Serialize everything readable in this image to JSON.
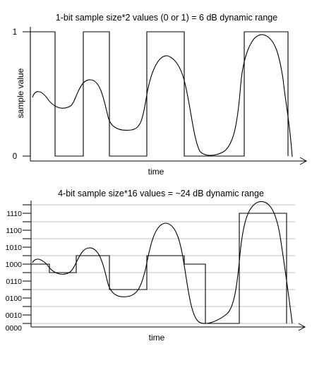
{
  "top_panel": {
    "title": "1-bit sample size*2 values (0 or 1) = 6 dB dynamic range",
    "ylabel": "sample value",
    "xlabel": "time",
    "y_ticks": [
      "1",
      "0"
    ]
  },
  "bottom_panel": {
    "title": "4-bit sample size*16 values = ~24 dB dynamic range",
    "xlabel": "time",
    "y_ticks": [
      "1110",
      "1100",
      "1010",
      "1000",
      "0110",
      "0100",
      "0010",
      "0000"
    ]
  },
  "colors": {
    "line": "#000000",
    "grid": "#c0c0c0",
    "background": "#ffffff"
  }
}
